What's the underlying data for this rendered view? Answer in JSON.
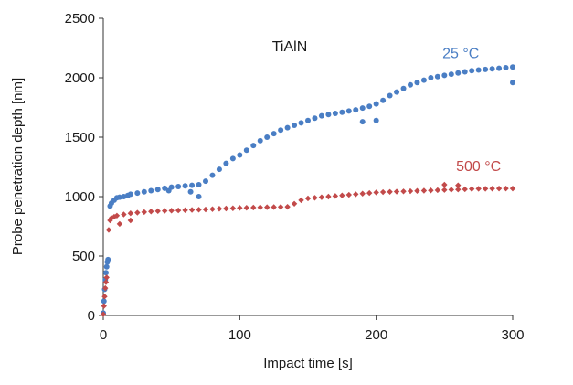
{
  "chart_data": {
    "type": "scatter",
    "annotation": "TiAlN",
    "xlabel": "Impact time [s]",
    "ylabel": "Probe penetration depth [nm]",
    "xlim": [
      0,
      300
    ],
    "ylim": [
      0,
      2500
    ],
    "xticks": [
      0,
      100,
      200,
      300
    ],
    "yticks": [
      0,
      500,
      1000,
      1500,
      2000,
      2500
    ],
    "grid": false,
    "series": [
      {
        "name": "25 °C",
        "color": "#4a7ec4",
        "marker": "circle",
        "points": [
          [
            0,
            20
          ],
          [
            0.5,
            120
          ],
          [
            1,
            220
          ],
          [
            1.5,
            300
          ],
          [
            2,
            360
          ],
          [
            2.5,
            410
          ],
          [
            3,
            450
          ],
          [
            3.5,
            470
          ],
          [
            5,
            920
          ],
          [
            6,
            945
          ],
          [
            8,
            970
          ],
          [
            10,
            990
          ],
          [
            12,
            995
          ],
          [
            15,
            1000
          ],
          [
            18,
            1010
          ],
          [
            20,
            1020
          ],
          [
            25,
            1030
          ],
          [
            30,
            1040
          ],
          [
            35,
            1050
          ],
          [
            40,
            1060
          ],
          [
            45,
            1070
          ],
          [
            50,
            1080
          ],
          [
            55,
            1085
          ],
          [
            60,
            1090
          ],
          [
            65,
            1095
          ],
          [
            70,
            1100
          ],
          [
            75,
            1130
          ],
          [
            80,
            1180
          ],
          [
            85,
            1230
          ],
          [
            90,
            1280
          ],
          [
            95,
            1320
          ],
          [
            100,
            1350
          ],
          [
            105,
            1390
          ],
          [
            110,
            1430
          ],
          [
            115,
            1470
          ],
          [
            120,
            1500
          ],
          [
            125,
            1530
          ],
          [
            130,
            1560
          ],
          [
            135,
            1580
          ],
          [
            140,
            1600
          ],
          [
            145,
            1620
          ],
          [
            150,
            1640
          ],
          [
            155,
            1660
          ],
          [
            160,
            1680
          ],
          [
            165,
            1690
          ],
          [
            170,
            1700
          ],
          [
            175,
            1710
          ],
          [
            180,
            1720
          ],
          [
            185,
            1730
          ],
          [
            190,
            1745
          ],
          [
            195,
            1760
          ],
          [
            200,
            1780
          ],
          [
            205,
            1810
          ],
          [
            210,
            1850
          ],
          [
            215,
            1880
          ],
          [
            220,
            1910
          ],
          [
            225,
            1940
          ],
          [
            230,
            1960
          ],
          [
            235,
            1980
          ],
          [
            240,
            2000
          ],
          [
            245,
            2010
          ],
          [
            250,
            2020
          ],
          [
            255,
            2030
          ],
          [
            260,
            2040
          ],
          [
            265,
            2050
          ],
          [
            270,
            2060
          ],
          [
            275,
            2065
          ],
          [
            280,
            2070
          ],
          [
            285,
            2075
          ],
          [
            290,
            2080
          ],
          [
            295,
            2085
          ],
          [
            300,
            2090
          ],
          [
            48,
            1050
          ],
          [
            64,
            1040
          ],
          [
            70,
            1000
          ],
          [
            190,
            1630
          ],
          [
            200,
            1640
          ],
          [
            300,
            1960
          ]
        ]
      },
      {
        "name": "500 °C",
        "color": "#c24a4a",
        "marker": "diamond",
        "points": [
          [
            0,
            10
          ],
          [
            0.5,
            80
          ],
          [
            1,
            160
          ],
          [
            1.5,
            230
          ],
          [
            2,
            280
          ],
          [
            2.5,
            320
          ],
          [
            4,
            720
          ],
          [
            5,
            800
          ],
          [
            6,
            820
          ],
          [
            8,
            830
          ],
          [
            10,
            840
          ],
          [
            15,
            850
          ],
          [
            20,
            860
          ],
          [
            25,
            865
          ],
          [
            30,
            870
          ],
          [
            35,
            875
          ],
          [
            40,
            878
          ],
          [
            45,
            880
          ],
          [
            50,
            882
          ],
          [
            55,
            884
          ],
          [
            60,
            886
          ],
          [
            65,
            888
          ],
          [
            70,
            890
          ],
          [
            75,
            892
          ],
          [
            80,
            895
          ],
          [
            85,
            898
          ],
          [
            90,
            900
          ],
          [
            95,
            902
          ],
          [
            100,
            905
          ],
          [
            105,
            906
          ],
          [
            110,
            908
          ],
          [
            115,
            910
          ],
          [
            120,
            911
          ],
          [
            125,
            912
          ],
          [
            130,
            913
          ],
          [
            135,
            914
          ],
          [
            140,
            940
          ],
          [
            145,
            970
          ],
          [
            150,
            985
          ],
          [
            155,
            990
          ],
          [
            160,
            995
          ],
          [
            165,
            1000
          ],
          [
            170,
            1005
          ],
          [
            175,
            1010
          ],
          [
            180,
            1015
          ],
          [
            185,
            1020
          ],
          [
            190,
            1025
          ],
          [
            195,
            1030
          ],
          [
            200,
            1035
          ],
          [
            205,
            1038
          ],
          [
            210,
            1040
          ],
          [
            215,
            1042
          ],
          [
            220,
            1044
          ],
          [
            225,
            1046
          ],
          [
            230,
            1048
          ],
          [
            235,
            1050
          ],
          [
            240,
            1052
          ],
          [
            245,
            1054
          ],
          [
            250,
            1056
          ],
          [
            255,
            1058
          ],
          [
            260,
            1060
          ],
          [
            265,
            1062
          ],
          [
            270,
            1064
          ],
          [
            275,
            1066
          ],
          [
            280,
            1066
          ],
          [
            285,
            1067
          ],
          [
            290,
            1068
          ],
          [
            295,
            1068
          ],
          [
            300,
            1068
          ],
          [
            12,
            770
          ],
          [
            20,
            800
          ],
          [
            250,
            1100
          ],
          [
            260,
            1095
          ]
        ]
      }
    ],
    "labels": [
      {
        "text": "25 °C",
        "color": "#4a7ec4",
        "x": 262,
        "y": 2165
      },
      {
        "text": "500 °C",
        "color": "#c24a4a",
        "x": 275,
        "y": 1215
      }
    ]
  }
}
